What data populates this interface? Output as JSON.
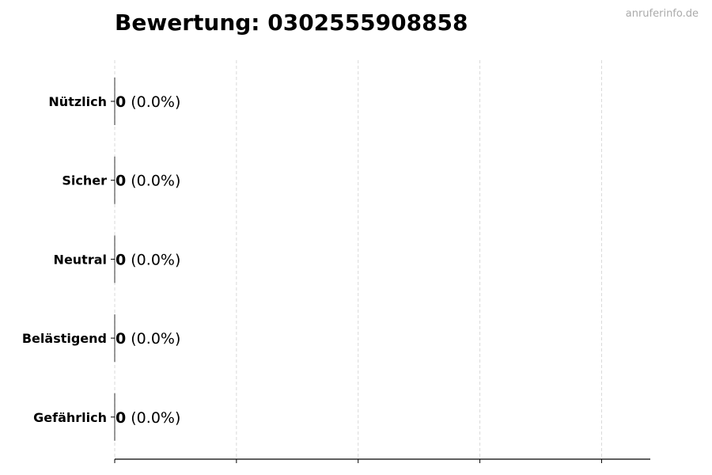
{
  "chart_data": {
    "type": "bar",
    "orientation": "horizontal",
    "title": "Bewertung: 0302555908858",
    "watermark": "anruferinfo.de",
    "categories": [
      "Nützlich",
      "Sicher",
      "Neutral",
      "Belästigend",
      "Gefährlich"
    ],
    "values": [
      0,
      0,
      0,
      0,
      0
    ],
    "percentages": [
      "0.0%",
      "0.0%",
      "0.0%",
      "0.0%",
      "0.0%"
    ],
    "xlabel": "",
    "ylabel": "",
    "xlim": [
      0,
      4.4
    ],
    "x_ticks": [
      0,
      1,
      2,
      3,
      4
    ],
    "x_tick_labels_shown": false,
    "grid": "x, dashed",
    "colors": {
      "bar_edge": "#000000",
      "grid": "#d9d9d9",
      "watermark": "#aaaaaa"
    }
  }
}
